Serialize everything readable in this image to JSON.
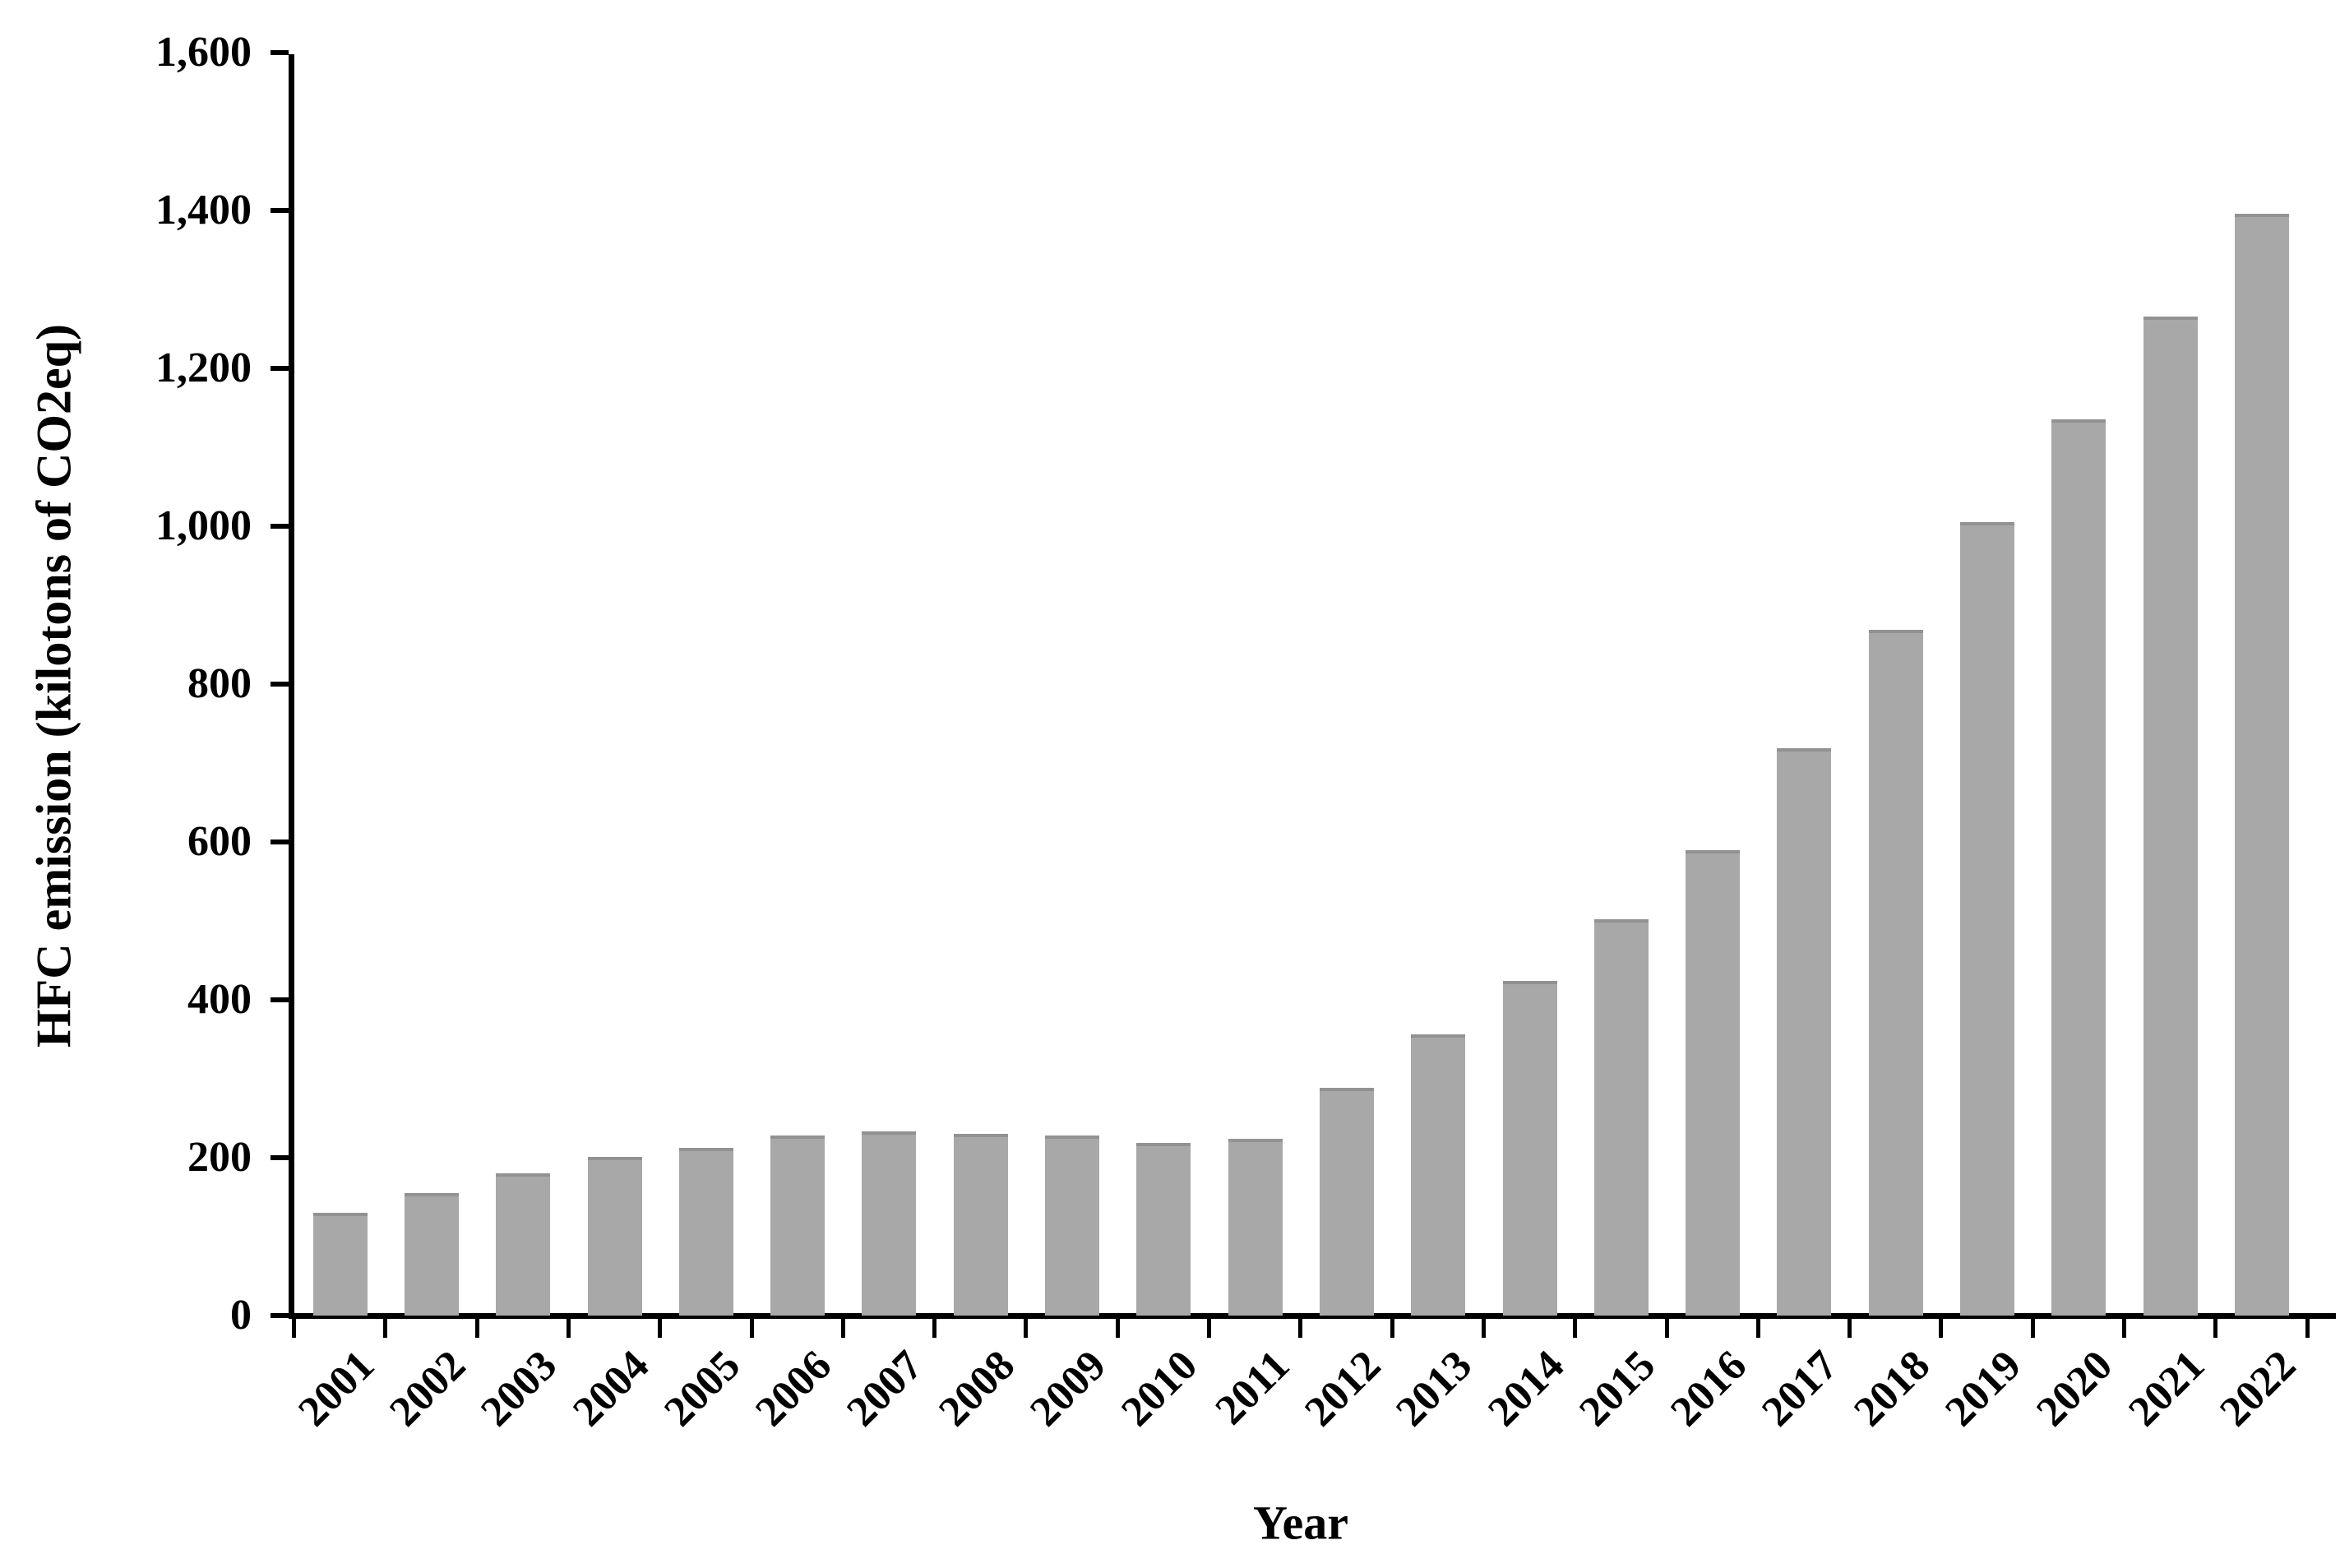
{
  "chart_data": {
    "type": "bar",
    "title": "",
    "xlabel": "Year",
    "ylabel": "HFC emission (kilotons of CO2eq)",
    "categories": [
      "2001",
      "2002",
      "2003",
      "2004",
      "2005",
      "2006",
      "2007",
      "2008",
      "2009",
      "2010",
      "2011",
      "2012",
      "2013",
      "2014",
      "2015",
      "2016",
      "2017",
      "2018",
      "2019",
      "2020",
      "2021",
      "2022"
    ],
    "values": [
      130,
      155,
      180,
      201,
      212,
      228,
      233,
      230,
      228,
      219,
      224,
      289,
      356,
      424,
      502,
      590,
      719,
      869,
      1005,
      1135,
      1266,
      1396
    ],
    "ylim": [
      0,
      1600
    ],
    "ytick_step": 200,
    "ytick_labels": [
      "0",
      "200",
      "400",
      "600",
      "800",
      "1,000",
      "1,200",
      "1,400",
      "1,600"
    ],
    "bar_color": "#a8a8a8",
    "bar_edge_color": "#929292",
    "axis_color": "#000000",
    "grid": false,
    "legend_position": "none"
  }
}
